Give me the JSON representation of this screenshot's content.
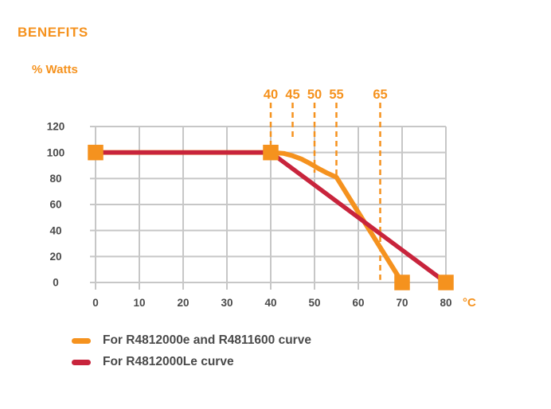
{
  "colors": {
    "accent_orange": "#F5921E",
    "curve_red": "#C8243C",
    "grid_gray": "#C7C7C7",
    "tick_text": "#4A4A4A",
    "background": "#FFFFFF"
  },
  "header": {
    "title": "BENEFITS"
  },
  "chart_data": {
    "type": "line",
    "title": "BENEFITS",
    "ylabel": "% Watts",
    "x_unit": "°C",
    "xlim": [
      0,
      80
    ],
    "ylim": [
      0,
      120
    ],
    "x_ticks": [
      0,
      10,
      20,
      30,
      40,
      50,
      60,
      70,
      80
    ],
    "y_ticks": [
      0,
      20,
      40,
      60,
      80,
      100,
      120
    ],
    "grid": true,
    "legend_position": "bottom-left",
    "marker_shape": "square",
    "marker_color": "#F5921E",
    "dashed_temperature_markers": [
      {
        "t": 40,
        "label": "40",
        "drop_to_pct": 106
      },
      {
        "t": 45,
        "label": "45",
        "drop_to_pct": 110
      },
      {
        "t": 50,
        "label": "50",
        "drop_to_pct": 84.5
      },
      {
        "t": 55,
        "label": "55",
        "drop_to_pct": 81.5
      },
      {
        "t": 65,
        "label": "65",
        "drop_to_pct": 2
      }
    ],
    "series": [
      {
        "name": "For R4812000e and R4811600 curve",
        "color": "#F5921E",
        "stroke_width": 6,
        "points": [
          [
            0,
            100
          ],
          [
            40,
            100
          ],
          [
            43,
            99.3
          ],
          [
            45,
            97.5
          ],
          [
            47,
            95
          ],
          [
            49,
            91.5
          ],
          [
            51,
            87.5
          ],
          [
            53,
            84
          ],
          [
            55,
            81
          ],
          [
            70,
            0
          ]
        ],
        "marker_points": [
          [
            0,
            100
          ],
          [
            40,
            100
          ],
          [
            70,
            0
          ]
        ]
      },
      {
        "name": "For R4812000Le curve",
        "color": "#C8243C",
        "stroke_width": 5.5,
        "points": [
          [
            0,
            100
          ],
          [
            40,
            100
          ],
          [
            80,
            0
          ]
        ],
        "marker_points": [
          [
            80,
            0
          ]
        ]
      }
    ]
  }
}
